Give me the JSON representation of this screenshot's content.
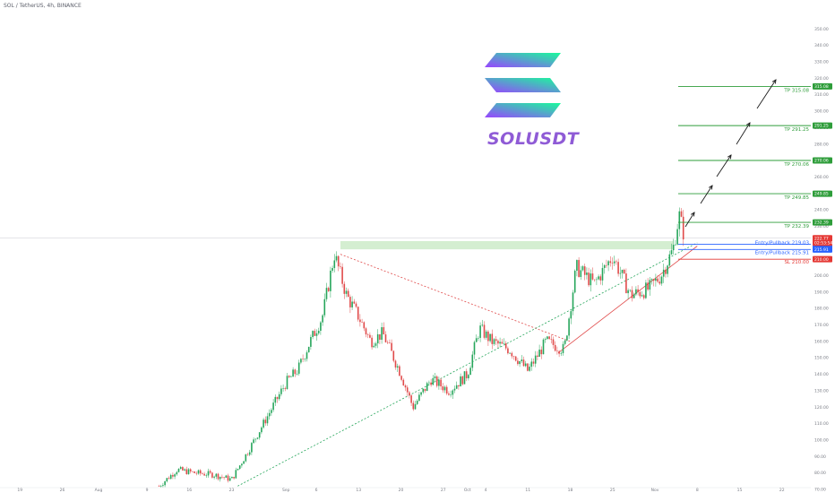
{
  "header": {
    "symbol_line": "SOL / TetherUS, 4h, BINANCE"
  },
  "brand": {
    "name": "SOLUSDT",
    "color": "#8f5bd6"
  },
  "colors": {
    "up": "#26a65b",
    "down": "#e04a4a",
    "tp": "#2e9d3a",
    "entry": "#2962ff",
    "sl": "#e53935",
    "zone": "#cdebc9"
  },
  "chart_data": {
    "type": "candlestick",
    "title": "SOL / TetherUS, 4h, BINANCE",
    "ylim": [
      70,
      360
    ],
    "y_ticks": [
      "70.00",
      "80.00",
      "90.00",
      "100.00",
      "110.00",
      "120.00",
      "130.00",
      "140.00",
      "150.00",
      "160.00",
      "170.00",
      "180.00",
      "190.00",
      "200.00",
      "210.00",
      "220.00",
      "230.00",
      "240.00",
      "250.00",
      "260.00",
      "270.00",
      "280.00",
      "290.00",
      "300.00",
      "310.00",
      "320.00",
      "330.00",
      "340.00",
      "350.00"
    ],
    "x_ticks": [
      "19",
      "26",
      "Aug",
      "9",
      "16",
      "23",
      "Sep",
      "6",
      "13",
      "20",
      "27",
      "Oct",
      "4",
      "11",
      "18",
      "25",
      "Nov",
      "8",
      "15",
      "22"
    ],
    "price_path": [
      {
        "t": "Aug 11",
        "p": 72
      },
      {
        "t": "Aug 14",
        "p": 82
      },
      {
        "t": "Aug 17",
        "p": 80
      },
      {
        "t": "Aug 20",
        "p": 79
      },
      {
        "t": "Aug 23",
        "p": 76
      },
      {
        "t": "Aug 26",
        "p": 95
      },
      {
        "t": "Aug 29",
        "p": 115
      },
      {
        "t": "Sep 1",
        "p": 135
      },
      {
        "t": "Sep 3",
        "p": 143
      },
      {
        "t": "Sep 5",
        "p": 160
      },
      {
        "t": "Sep 7",
        "p": 175
      },
      {
        "t": "Sep 9",
        "p": 213
      },
      {
        "t": "Sep 11",
        "p": 188
      },
      {
        "t": "Sep 13",
        "p": 175
      },
      {
        "t": "Sep 15",
        "p": 160
      },
      {
        "t": "Sep 17",
        "p": 165
      },
      {
        "t": "Sep 20",
        "p": 140
      },
      {
        "t": "Sep 22",
        "p": 120
      },
      {
        "t": "Sep 25",
        "p": 137
      },
      {
        "t": "Sep 28",
        "p": 130
      },
      {
        "t": "Oct 1",
        "p": 140
      },
      {
        "t": "Oct 3",
        "p": 168
      },
      {
        "t": "Oct 5",
        "p": 160
      },
      {
        "t": "Oct 8",
        "p": 155
      },
      {
        "t": "Oct 11",
        "p": 142
      },
      {
        "t": "Oct 14",
        "p": 160
      },
      {
        "t": "Oct 17",
        "p": 155
      },
      {
        "t": "Oct 19",
        "p": 205
      },
      {
        "t": "Oct 22",
        "p": 195
      },
      {
        "t": "Oct 25",
        "p": 212
      },
      {
        "t": "Oct 28",
        "p": 188
      },
      {
        "t": "Oct 31",
        "p": 192
      },
      {
        "t": "Nov 2",
        "p": 200
      },
      {
        "t": "Nov 4",
        "p": 216
      },
      {
        "t": "Nov 5",
        "p": 237
      },
      {
        "t": "Nov 6",
        "p": 222
      }
    ],
    "levels": [
      {
        "label": "TP 315.08",
        "value": 315.08,
        "kind": "tp",
        "badge": "315.08"
      },
      {
        "label": "TP 291.25",
        "value": 291.25,
        "kind": "tp",
        "badge": "291.25"
      },
      {
        "label": "TP 270.06",
        "value": 270.06,
        "kind": "tp",
        "badge": "270.06"
      },
      {
        "label": "TP 249.85",
        "value": 249.85,
        "kind": "tp",
        "badge": "249.85"
      },
      {
        "label": "TP 232.39",
        "value": 232.39,
        "kind": "tp",
        "badge": "232.39"
      },
      {
        "label": "Entry/Pullback 219.03",
        "value": 219.03,
        "kind": "entry",
        "badge": "219.03"
      },
      {
        "label": "Entry/Pullback 215.91",
        "value": 215.91,
        "kind": "entry",
        "badge": "215.91"
      },
      {
        "label": "SL 210.00",
        "value": 210.0,
        "kind": "sl",
        "badge": "210.00"
      }
    ],
    "last_price": {
      "value": 222.77,
      "label": "222.77",
      "countdown": "02:53:54"
    },
    "resistance_zone": {
      "from": "Sep 10",
      "to": "Nov 4",
      "low": 216,
      "high": 221
    },
    "trendlines": [
      {
        "style": "dotted",
        "color": "#e04a4a",
        "from": {
          "t": "Sep 10",
          "p": 213
        },
        "to": {
          "t": "Oct 18",
          "p": 160
        }
      },
      {
        "style": "dotted",
        "color": "#26a65b",
        "from": {
          "t": "Aug 24",
          "p": 72
        },
        "to": {
          "t": "Nov 8",
          "p": 220
        }
      },
      {
        "style": "solid",
        "color": "#e04a4a",
        "from": {
          "t": "Oct 16",
          "p": 153
        },
        "to": {
          "t": "Nov 8",
          "p": 218
        }
      }
    ],
    "grid": false
  }
}
